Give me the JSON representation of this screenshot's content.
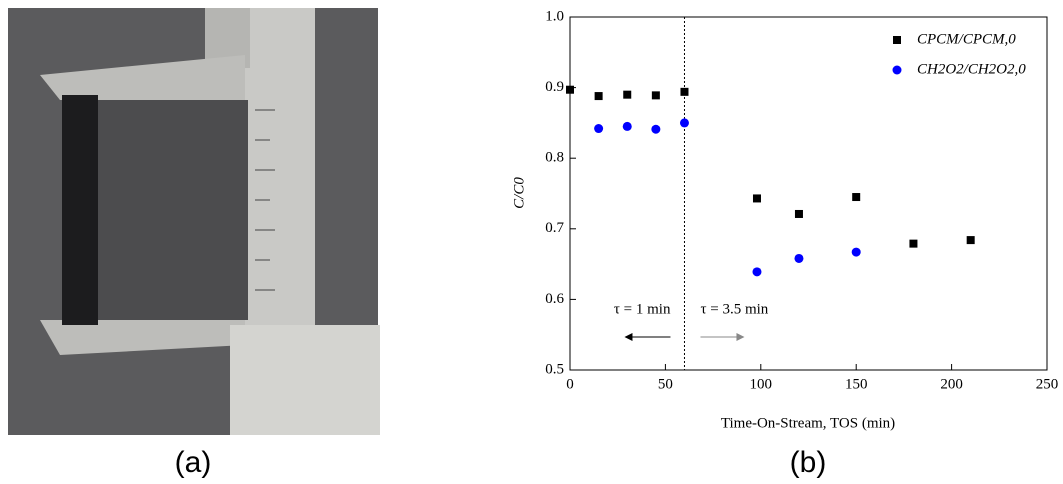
{
  "chart_data": {
    "type": "scatter",
    "x_label": "Time-On-Stream, TOS (min)",
    "y_label": "C/C0",
    "xlim": [
      0,
      250
    ],
    "ylim": [
      0.5,
      1.0
    ],
    "xticks": [
      0,
      50,
      100,
      150,
      200,
      250
    ],
    "yticks": [
      0.5,
      0.6,
      0.7,
      0.8,
      0.9,
      {
        "value": 1.0,
        "label": "1.0"
      }
    ],
    "vline": 60,
    "annotations": [
      "τ = 1 min",
      "τ = 3.5 min"
    ],
    "legend": "upper right",
    "series": [
      {
        "name": "CPCM/CPCM,0",
        "color": "#000000",
        "marker": "square",
        "x": [
          0,
          15,
          30,
          45,
          60,
          98,
          120,
          150,
          180,
          210
        ],
        "values": [
          0.897,
          0.888,
          0.89,
          0.889,
          0.894,
          0.743,
          0.721,
          0.745,
          0.679,
          0.684
        ]
      },
      {
        "name": "CH2O2/CH2O2,0",
        "color": "#0000ff",
        "marker": "circle",
        "x": [
          15,
          30,
          45,
          60,
          98,
          120,
          150
        ],
        "values": [
          0.842,
          0.845,
          0.841,
          0.85,
          0.639,
          0.658,
          0.667
        ]
      }
    ]
  },
  "captions": [
    "(a)",
    "(b)"
  ]
}
